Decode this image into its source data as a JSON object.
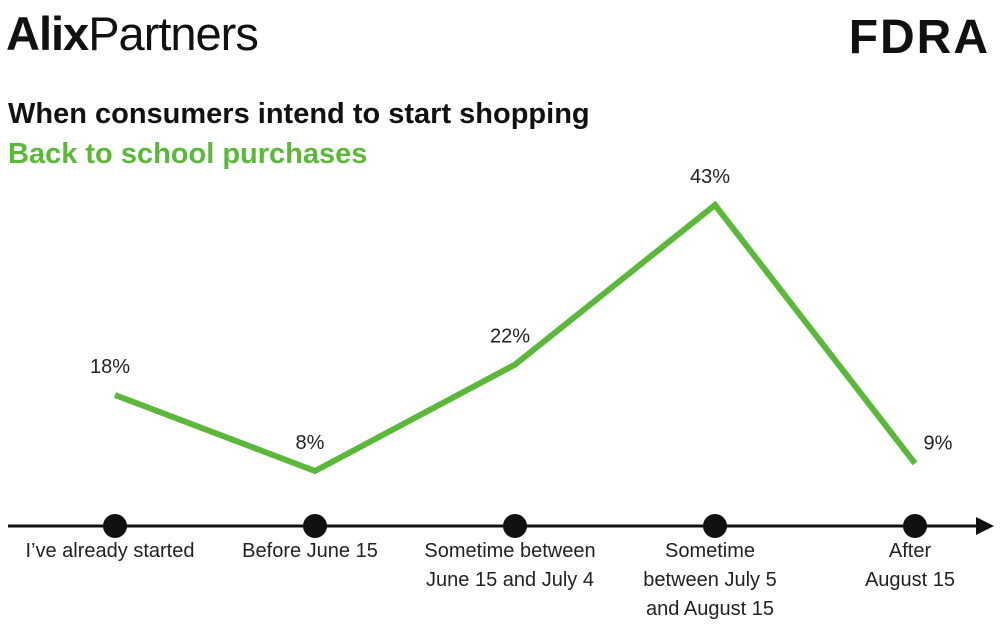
{
  "header": {
    "logo_left_bold": "Alix",
    "logo_left_regular": "Partners",
    "logo_right": "FDRA"
  },
  "chart_data": {
    "type": "line",
    "title": "When consumers intend to start shopping",
    "subtitle": "Back to school purchases",
    "categories": [
      [
        "I’ve already started"
      ],
      [
        "Before June 15"
      ],
      [
        "Sometime between",
        "June 15 and July 4"
      ],
      [
        "Sometime",
        "between July 5",
        "and August 15"
      ],
      [
        "After",
        "August 15"
      ]
    ],
    "series": [
      {
        "values": [
          18,
          8,
          22,
          43,
          9
        ],
        "labels": [
          "18%",
          "8%",
          "22%",
          "43%",
          "9%"
        ]
      }
    ],
    "unit": "%",
    "grid": false,
    "legend": "none"
  },
  "colors": {
    "accent": "#5CB83A",
    "axis": "#111111",
    "text": "#222222"
  }
}
